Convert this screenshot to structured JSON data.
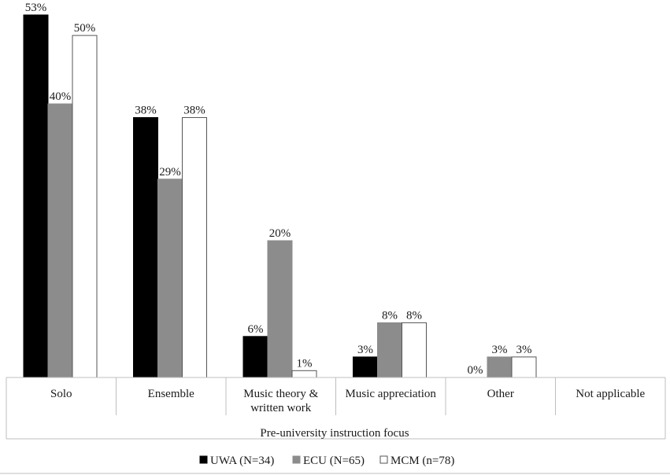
{
  "chart_data": {
    "type": "bar",
    "title": "",
    "xlabel": "Pre-university instruction focus",
    "ylabel": "",
    "ylim": [
      0,
      53
    ],
    "grid": false,
    "legend_position": "bottom",
    "categories": [
      "Solo",
      "Ensemble",
      "Music theory & written work",
      "Music appreciation",
      "Other",
      "Not applicable"
    ],
    "category_lines": [
      [
        "Solo"
      ],
      [
        "Ensemble"
      ],
      [
        "Music theory &",
        "written work"
      ],
      [
        "Music appreciation"
      ],
      [
        "Other"
      ],
      [
        "Not applicable"
      ]
    ],
    "series": [
      {
        "name": "UWA (N=34)",
        "color": "#000000",
        "stroke": "#000000",
        "values": [
          53,
          38,
          6,
          3,
          0,
          null
        ],
        "labels": [
          "53%",
          "38%",
          "6%",
          "3%",
          "0%",
          ""
        ]
      },
      {
        "name": "ECU (N=65)",
        "color": "#8c8c8c",
        "stroke": "#8c8c8c",
        "values": [
          40,
          29,
          20,
          8,
          3,
          null
        ],
        "labels": [
          "40%",
          "29%",
          "20%",
          "8%",
          "3%",
          ""
        ]
      },
      {
        "name": "MCM (n=78)",
        "color": "#ffffff",
        "stroke": "#555555",
        "values": [
          50,
          38,
          1,
          8,
          3,
          null
        ],
        "labels": [
          "50%",
          "38%",
          "1%",
          "8%",
          "3%",
          ""
        ]
      }
    ]
  }
}
